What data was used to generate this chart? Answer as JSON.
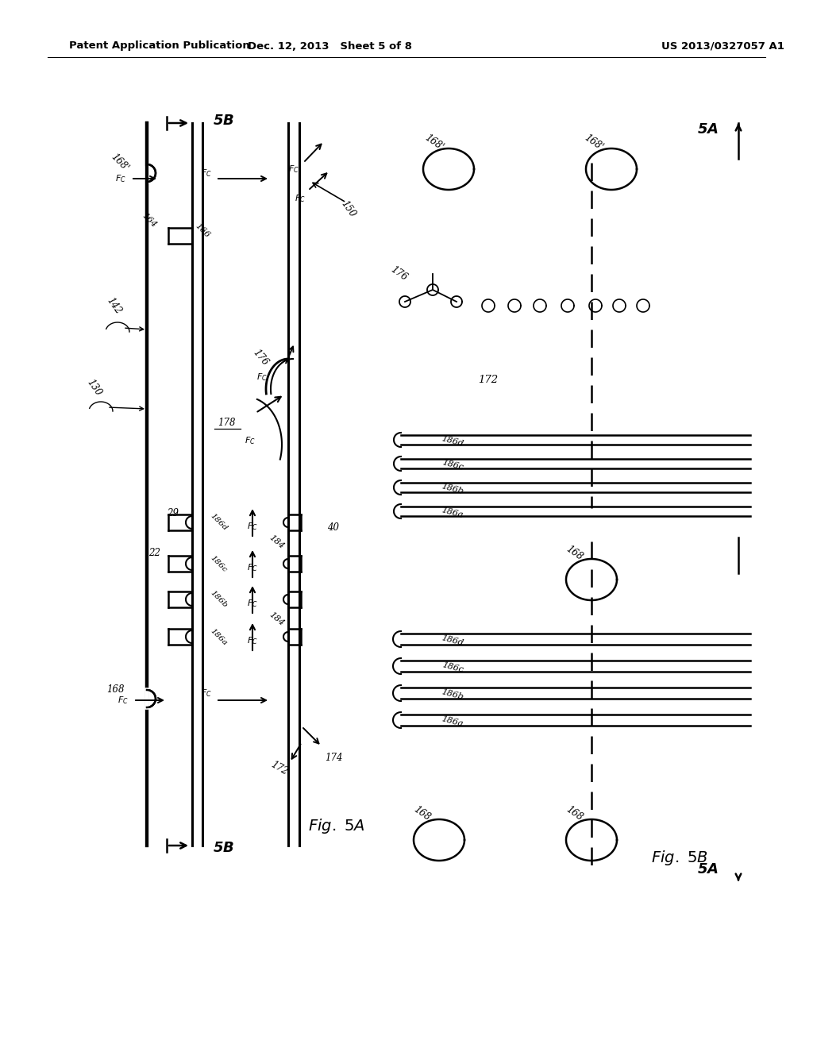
{
  "bg_color": "#ffffff",
  "header_text": "Patent Application Publication",
  "header_date": "Dec. 12, 2013   Sheet 5 of 8",
  "header_patent": "US 2013/0327057 A1",
  "fig_width": 10.24,
  "fig_height": 13.2
}
